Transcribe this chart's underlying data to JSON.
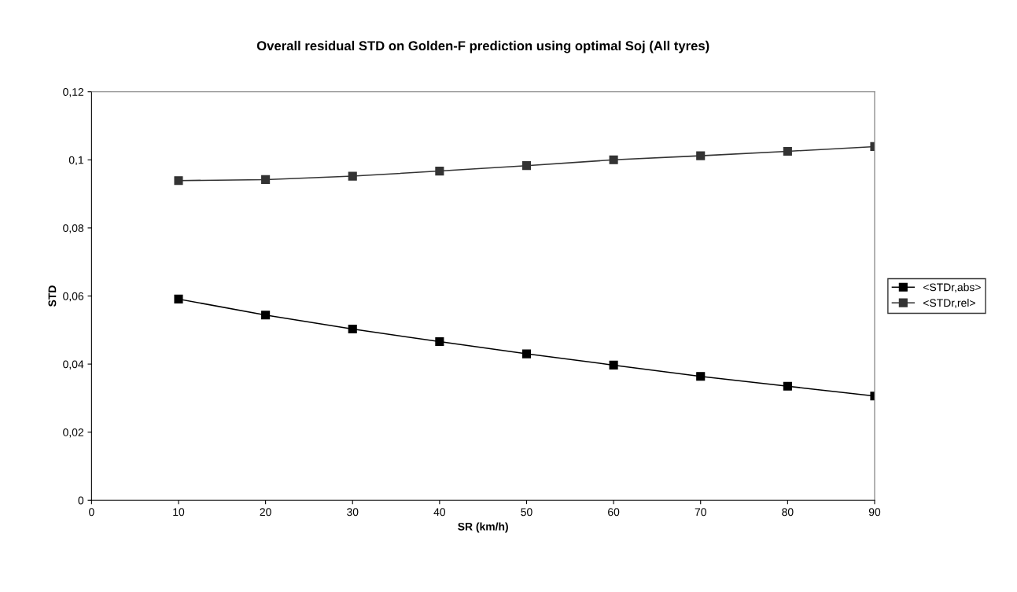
{
  "chart_data": {
    "type": "line",
    "title": "Overall residual STD on Golden-F prediction using optimal Soj (All tyres)",
    "xlabel": "SR (km/h)",
    "ylabel": "STD",
    "x": [
      10,
      20,
      30,
      40,
      50,
      60,
      70,
      80,
      90
    ],
    "series": [
      {
        "name": "<STDr,abs>",
        "color": "#000000",
        "values": [
          0.0591,
          0.0544,
          0.0503,
          0.0466,
          0.043,
          0.0397,
          0.0364,
          0.0335,
          0.0306
        ]
      },
      {
        "name": "<STDr,rel>",
        "color": "#333333",
        "values": [
          0.0939,
          0.0942,
          0.0952,
          0.0967,
          0.0983,
          0.1,
          0.1012,
          0.1025,
          0.1039
        ]
      }
    ],
    "xlim": [
      0,
      90
    ],
    "xticks": [
      0,
      10,
      20,
      30,
      40,
      50,
      60,
      70,
      80,
      90
    ],
    "ylim": [
      0,
      0.12
    ],
    "yticks": [
      {
        "value": 0,
        "label": "0"
      },
      {
        "value": 0.02,
        "label": "0,02"
      },
      {
        "value": 0.04,
        "label": "0,04"
      },
      {
        "value": 0.06,
        "label": "0,06"
      },
      {
        "value": 0.08,
        "label": "0,08"
      },
      {
        "value": 0.1,
        "label": "0,1"
      },
      {
        "value": 0.12,
        "label": "0,12"
      }
    ],
    "grid": false,
    "legend": "right",
    "marker": "square",
    "line_style": "solid"
  }
}
